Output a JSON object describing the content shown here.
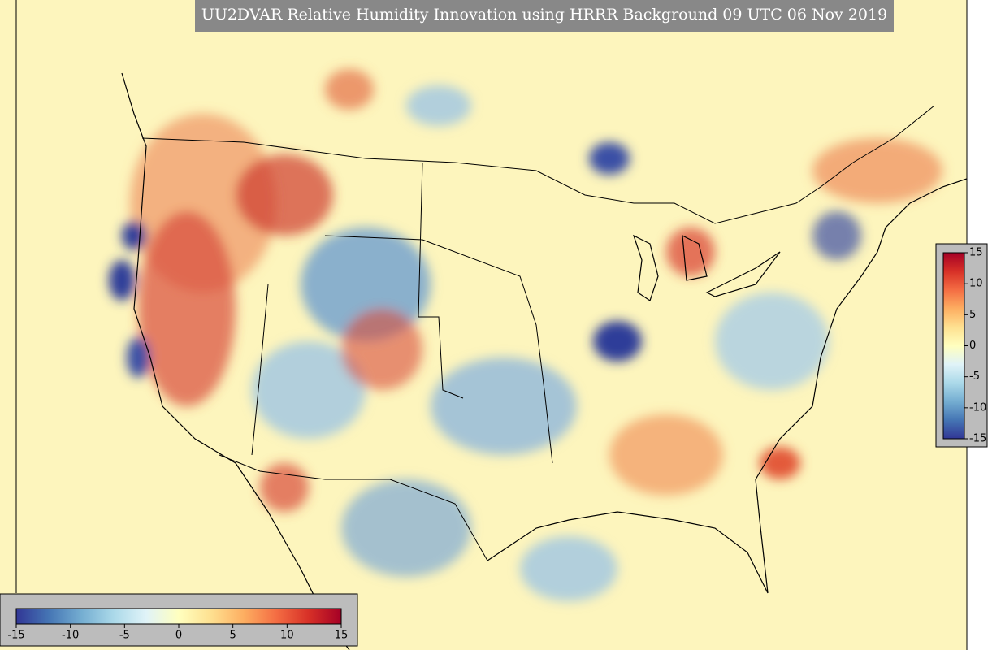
{
  "title": "UU2DVAR Relative Humidity Innovation using HRRR Background 09 UTC 06 Nov 2019",
  "colorbar": {
    "range": [
      -15,
      15
    ],
    "ticks": [
      -15,
      -10,
      -5,
      0,
      5,
      10,
      15
    ],
    "colors": [
      "#313695",
      "#4575b4",
      "#74add1",
      "#abd9e9",
      "#e0f3f8",
      "#ffffbf",
      "#fee090",
      "#fdae61",
      "#f46d43",
      "#d73027",
      "#a50026"
    ]
  }
}
